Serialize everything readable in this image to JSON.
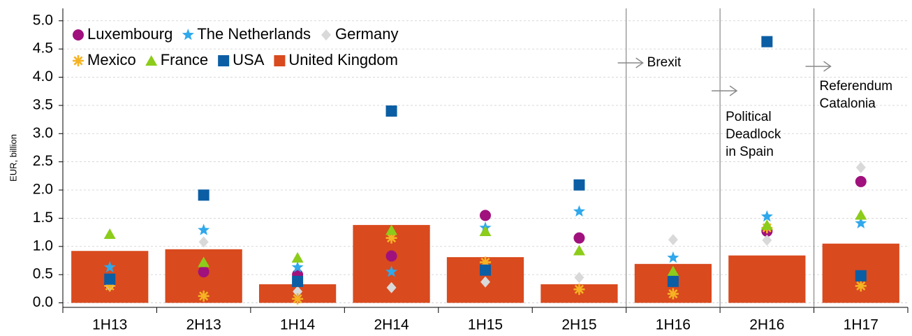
{
  "chart_data": {
    "type": "bar",
    "y_label": "EUR, billion",
    "categories": [
      "1H13",
      "2H13",
      "1H14",
      "2H14",
      "1H15",
      "2H15",
      "1H16",
      "2H16",
      "1H17"
    ],
    "series": [
      {
        "name": "Luxembourg",
        "type": "scatter",
        "marker": "circle",
        "color": "#a0117d",
        "values": [
          0.33,
          0.55,
          0.5,
          0.83,
          1.55,
          1.15,
          0.42,
          1.27,
          2.15
        ]
      },
      {
        "name": "The Netherlands",
        "type": "scatter",
        "marker": "star",
        "color": "#2fa8ec",
        "values": [
          0.63,
          1.29,
          0.63,
          0.55,
          1.33,
          1.62,
          0.8,
          1.53,
          1.41
        ]
      },
      {
        "name": "Germany",
        "type": "scatter",
        "marker": "diamond",
        "color": "#d9d9d9",
        "values": [
          0.3,
          1.08,
          0.2,
          0.27,
          0.37,
          0.45,
          1.12,
          1.11,
          2.4
        ]
      },
      {
        "name": "Mexico",
        "type": "scatter",
        "marker": "asterisk",
        "color": "#f5b324",
        "values": [
          0.3,
          0.12,
          0.07,
          1.15,
          0.72,
          0.24,
          0.16,
          1.33,
          0.3
        ]
      },
      {
        "name": "France",
        "type": "scatter",
        "marker": "triangle",
        "color": "#8ccc1a",
        "values": [
          1.22,
          0.72,
          0.8,
          1.29,
          1.27,
          0.93,
          0.56,
          1.38,
          1.56
        ]
      },
      {
        "name": "USA",
        "type": "scatter",
        "marker": "square",
        "color": "#0b5ea4",
        "values": [
          0.42,
          1.91,
          0.38,
          3.4,
          0.58,
          2.09,
          0.38,
          4.63,
          0.48
        ]
      },
      {
        "name": "United Kingdom",
        "type": "bar",
        "marker": "bar",
        "color": "#d94a1e",
        "values": [
          0.92,
          0.95,
          0.33,
          1.38,
          0.81,
          0.33,
          0.69,
          0.84,
          1.05
        ]
      }
    ],
    "ylim": [
      -0.08,
      5.22
    ],
    "yticks": [
      {
        "value": 0,
        "label": "0.0"
      },
      0.5,
      {
        "value": 1,
        "label": "1.0"
      },
      1.5,
      {
        "value": 2,
        "label": "2.0"
      },
      2.5,
      {
        "value": 3,
        "label": "3.0"
      },
      3.5,
      {
        "value": 4,
        "label": "4.0"
      },
      4.5,
      {
        "value": 5,
        "label": "5.0"
      }
    ],
    "grid": true,
    "legend": "upper left",
    "annotations": [
      {
        "lines": [
          "Brexit"
        ]
      },
      {
        "lines": [
          "Political",
          "Deadlock",
          "in Spain"
        ]
      },
      {
        "lines": [
          "Referendum",
          "Catalonia"
        ]
      }
    ]
  }
}
